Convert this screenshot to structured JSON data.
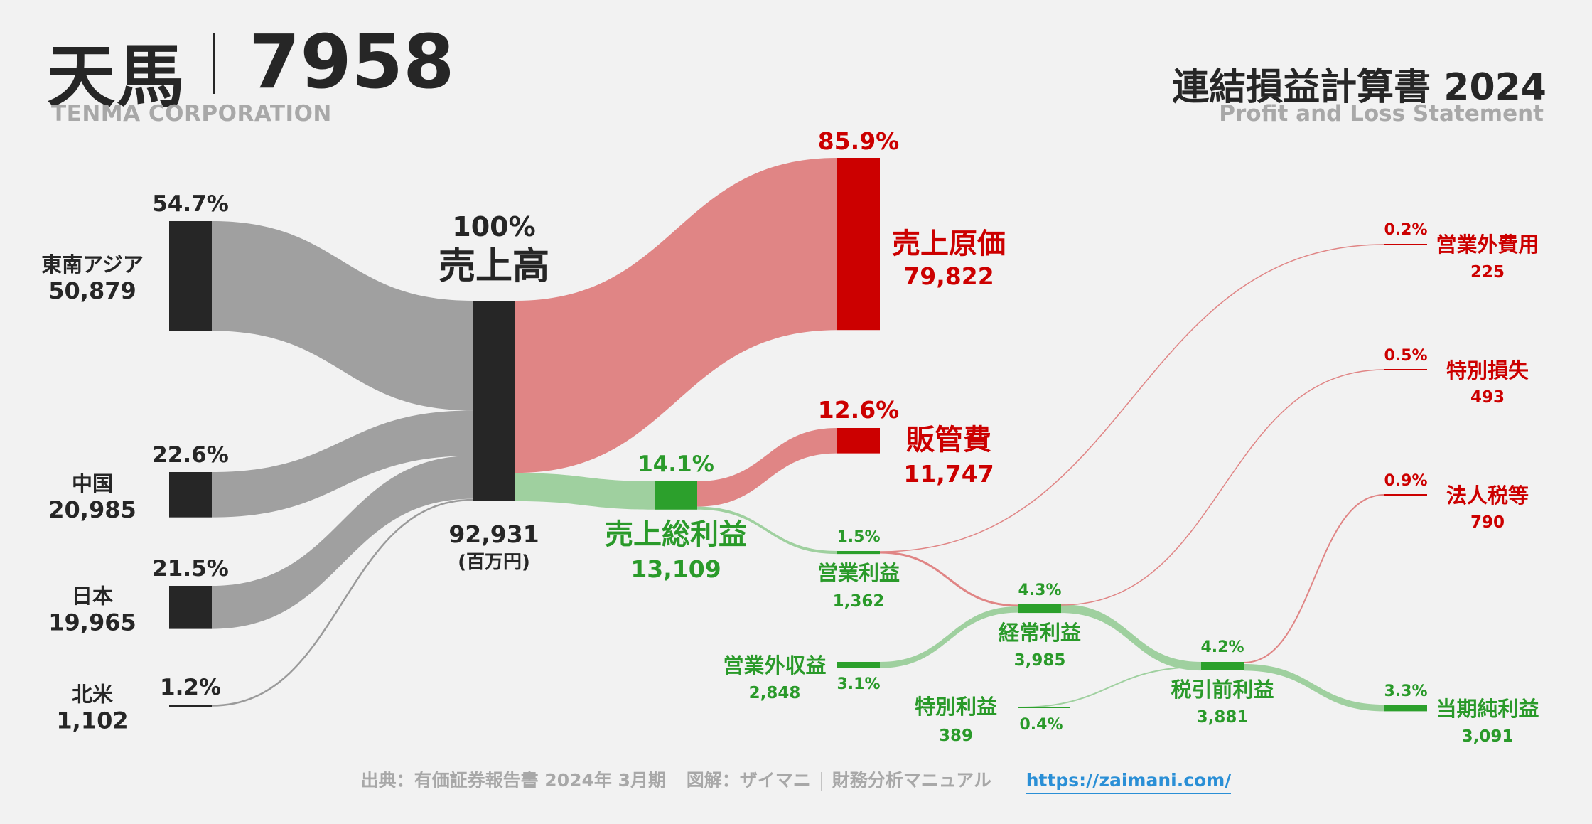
{
  "header": {
    "company_name": "天馬",
    "ticker": "7958",
    "company_en": "TENMA CORPORATION",
    "statement_title": "連結損益計算書 2024",
    "statement_en": "Profit and Loss Statement"
  },
  "footer": {
    "source": "出典：有価証券報告書 2024年 3月期",
    "illustration": "図解：ザイマニ",
    "site": "財務分析マニュアル",
    "url": "https://zaimani.com/"
  },
  "colors": {
    "dark_node": "#262626",
    "gray_flow": "#a0a0a0",
    "red": "#cc0000",
    "red_flow": "#e08585",
    "green": "#2ca02c",
    "green_flow": "#9fd09f",
    "green_text": "#2a9a2a"
  },
  "chart_data": {
    "type": "sankey",
    "unit": "百万円",
    "revenue": {
      "name": "売上高",
      "value": 92931,
      "value_label": "92,931",
      "pct": "100%",
      "unit_label": "(百万円)"
    },
    "segments": [
      {
        "name": "東南アジア",
        "value": 50879,
        "value_label": "50,879",
        "pct": "54.7%"
      },
      {
        "name": "中国",
        "value": 20985,
        "value_label": "20,985",
        "pct": "22.6%"
      },
      {
        "name": "日本",
        "value": 19965,
        "value_label": "19,965",
        "pct": "21.5%"
      },
      {
        "name": "北米",
        "value": 1102,
        "value_label": "1,102",
        "pct": "1.2%"
      }
    ],
    "cost_of_sales": {
      "name": "売上原価",
      "value": 79822,
      "value_label": "79,822",
      "pct": "85.9%"
    },
    "gross_profit": {
      "name": "売上総利益",
      "value": 13109,
      "value_label": "13,109",
      "pct": "14.1%"
    },
    "sga": {
      "name": "販管費",
      "value": 11747,
      "value_label": "11,747",
      "pct": "12.6%"
    },
    "operating_income": {
      "name": "営業利益",
      "value": 1362,
      "value_label": "1,362",
      "pct": "1.5%"
    },
    "non_operating_income": {
      "name": "営業外収益",
      "value": 2848,
      "value_label": "2,848",
      "pct": "3.1%"
    },
    "non_operating_expenses": {
      "name": "営業外費用",
      "value": 225,
      "value_label": "225",
      "pct": "0.2%"
    },
    "ordinary_income": {
      "name": "経常利益",
      "value": 3985,
      "value_label": "3,985",
      "pct": "4.3%"
    },
    "extraordinary_income": {
      "name": "特別利益",
      "value": 389,
      "value_label": "389",
      "pct": "0.4%"
    },
    "extraordinary_loss": {
      "name": "特別損失",
      "value": 493,
      "value_label": "493",
      "pct": "0.5%"
    },
    "pretax_income": {
      "name": "税引前利益",
      "value": 3881,
      "value_label": "3,881",
      "pct": "4.2%"
    },
    "income_taxes": {
      "name": "法人税等",
      "value": 790,
      "value_label": "790",
      "pct": "0.9%"
    },
    "net_income": {
      "name": "当期純利益",
      "value": 3091,
      "value_label": "3,091",
      "pct": "3.3%"
    }
  }
}
